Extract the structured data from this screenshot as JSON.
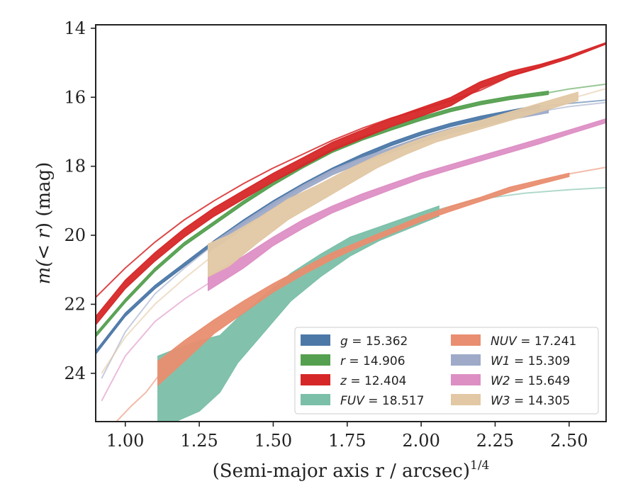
{
  "chart_data": {
    "type": "line",
    "xlabel": "(Semi-major axis r / arcsec)",
    "xlabel_exp": "1/4",
    "ylabel_pre": "m(",
    "ylabel_italic": "< r",
    "ylabel_post": ") (mag)",
    "xlim": [
      0.9,
      2.625
    ],
    "ylim": [
      25.4,
      13.9
    ],
    "y_inverted": true,
    "grid": false,
    "legend_position": "lower right",
    "xticks": [
      1.0,
      1.25,
      1.5,
      1.75,
      2.0,
      2.25,
      2.5
    ],
    "xtick_labels": [
      "1.00",
      "1.25",
      "1.50",
      "1.75",
      "2.00",
      "2.25",
      "2.50"
    ],
    "yticks": [
      14,
      16,
      18,
      20,
      22,
      24
    ],
    "ytick_labels": [
      "14",
      "16",
      "18",
      "20",
      "22",
      "24"
    ],
    "series": [
      {
        "band": "g",
        "value": "15.362",
        "color": "#4c78a8",
        "band_x": [
          0.9,
          1.0,
          1.1,
          1.2,
          1.3,
          1.4,
          1.5,
          1.6,
          1.7,
          1.8,
          1.9,
          2.0,
          2.1,
          2.2,
          2.3,
          2.4
        ],
        "band_lo": [
          23.35,
          22.25,
          21.45,
          20.8,
          20.15,
          19.55,
          19.0,
          18.5,
          18.05,
          17.65,
          17.3,
          17.0,
          16.75,
          16.55,
          16.38,
          16.22
        ],
        "band_hi": [
          23.45,
          22.35,
          21.55,
          20.9,
          20.25,
          19.65,
          19.1,
          18.6,
          18.15,
          17.75,
          17.4,
          17.1,
          16.85,
          16.65,
          16.48,
          16.32
        ],
        "ext_x": [
          2.4,
          2.5,
          2.625
        ],
        "ext_y": [
          16.27,
          16.18,
          16.08
        ]
      },
      {
        "band": "r",
        "value": "14.906",
        "color": "#55a050",
        "band_x": [
          0.9,
          1.0,
          1.1,
          1.2,
          1.3,
          1.4,
          1.5,
          1.6,
          1.7,
          1.8,
          1.9,
          2.0,
          2.1,
          2.2,
          2.3,
          2.43
        ],
        "band_lo": [
          22.85,
          21.85,
          20.95,
          20.2,
          19.6,
          19.0,
          18.45,
          17.95,
          17.5,
          17.15,
          16.85,
          16.57,
          16.32,
          16.12,
          15.97,
          15.82
        ],
        "band_hi": [
          22.95,
          21.95,
          21.05,
          20.3,
          19.7,
          19.1,
          18.55,
          18.05,
          17.6,
          17.25,
          16.95,
          16.67,
          16.42,
          16.22,
          16.07,
          15.92
        ],
        "ext_x": [
          2.43,
          2.5,
          2.625
        ],
        "ext_y": [
          15.87,
          15.76,
          15.62
        ]
      },
      {
        "band": "z",
        "value": "12.404",
        "color": "#d62728",
        "band_x": [
          0.9,
          1.0,
          1.1,
          1.2,
          1.3,
          1.4,
          1.5,
          1.6,
          1.7,
          1.8,
          1.9,
          2.0,
          2.1,
          2.2,
          2.3,
          2.4,
          2.5,
          2.625
        ],
        "band_lo": [
          22.35,
          21.3,
          20.5,
          19.8,
          19.2,
          18.7,
          18.2,
          17.75,
          17.3,
          16.95,
          16.6,
          16.3,
          16.0,
          15.55,
          15.25,
          15.05,
          14.8,
          14.42
        ],
        "band_hi": [
          22.6,
          21.55,
          20.75,
          20.05,
          19.45,
          18.95,
          18.45,
          18.0,
          17.55,
          17.2,
          16.85,
          16.55,
          16.25,
          15.75,
          15.4,
          15.15,
          14.88,
          14.46
        ],
        "ext_x": [
          0.9,
          1.0,
          1.1,
          1.2,
          1.3,
          1.4,
          1.5,
          1.6,
          1.7,
          1.8,
          1.9,
          2.0,
          2.1,
          2.2,
          2.3,
          2.4,
          2.5,
          2.625
        ],
        "ext_y": [
          21.8,
          20.95,
          20.2,
          19.55,
          19.0,
          18.5,
          18.05,
          17.65,
          17.25,
          16.9,
          16.6,
          16.35,
          16.1,
          15.8,
          15.4,
          15.1,
          14.8,
          14.42
        ]
      },
      {
        "band": "FUV",
        "value": "18.517",
        "color": "#7bbfa8",
        "band_x": [
          1.11,
          1.17,
          1.25,
          1.32,
          1.38,
          1.46,
          1.56,
          1.66,
          1.76,
          1.86,
          1.96,
          2.06
        ],
        "band_lo": [
          23.5,
          23.3,
          23.05,
          22.9,
          22.4,
          21.8,
          21.1,
          20.55,
          20.05,
          19.75,
          19.45,
          19.15
        ],
        "band_hi": [
          25.4,
          25.4,
          25.1,
          24.55,
          23.7,
          22.9,
          21.9,
          21.2,
          20.6,
          20.15,
          19.8,
          19.45
        ],
        "ext_x": [
          2.06,
          2.2,
          2.35,
          2.5,
          2.625
        ],
        "ext_y": [
          19.25,
          18.95,
          18.78,
          18.68,
          18.62
        ]
      },
      {
        "band": "NUV",
        "value": "17.241",
        "color": "#e98e70",
        "band_x": [
          1.11,
          1.2,
          1.3,
          1.4,
          1.5,
          1.6,
          1.7,
          1.8,
          1.9,
          2.0,
          2.1,
          2.2,
          2.3,
          2.4,
          2.5
        ],
        "band_lo": [
          23.65,
          23.05,
          22.45,
          21.9,
          21.4,
          20.95,
          20.5,
          20.15,
          19.8,
          19.45,
          19.15,
          18.9,
          18.6,
          18.4,
          18.2
        ],
        "band_hi": [
          24.35,
          23.65,
          22.85,
          22.25,
          21.65,
          21.15,
          20.7,
          20.3,
          19.95,
          19.6,
          19.3,
          19.02,
          18.75,
          18.52,
          18.3
        ],
        "ext_x": [
          0.97,
          1.02,
          1.07,
          1.11
        ],
        "ext_y": [
          25.4,
          24.95,
          24.55,
          24.1
        ],
        "ext2_x": [
          2.5,
          2.625
        ],
        "ext2_y": [
          18.22,
          18.03
        ]
      },
      {
        "band": "W1",
        "value": "15.309",
        "color": "#9eaac8",
        "band_x": [
          1.28,
          1.4,
          1.5,
          1.6,
          1.7,
          1.8,
          1.9,
          2.0,
          2.1,
          2.2,
          2.3,
          2.43
        ],
        "band_lo": [
          20.3,
          19.6,
          19.05,
          18.55,
          18.1,
          17.75,
          17.45,
          17.15,
          16.9,
          16.7,
          16.5,
          16.3
        ],
        "band_hi": [
          20.5,
          19.8,
          19.2,
          18.7,
          18.25,
          17.9,
          17.6,
          17.3,
          17.05,
          16.85,
          16.65,
          16.45
        ],
        "ext_x": [
          0.92,
          1.0,
          1.1,
          1.2,
          1.28
        ],
        "ext_y": [
          24.15,
          22.8,
          21.7,
          20.95,
          20.4
        ],
        "ext2_x": [
          2.43,
          2.5,
          2.625
        ],
        "ext2_y": [
          16.37,
          16.27,
          16.15
        ]
      },
      {
        "band": "W2",
        "value": "15.649",
        "color": "#dd8fc4",
        "band_x": [
          1.28,
          1.4,
          1.5,
          1.6,
          1.7,
          1.8,
          1.9,
          2.0,
          2.1,
          2.2,
          2.3,
          2.4,
          2.5,
          2.625
        ],
        "band_lo": [
          21.2,
          20.6,
          20.05,
          19.55,
          19.15,
          18.8,
          18.5,
          18.2,
          17.95,
          17.7,
          17.45,
          17.2,
          16.95,
          16.62
        ],
        "band_hi": [
          21.6,
          20.95,
          20.3,
          19.8,
          19.35,
          19.0,
          18.67,
          18.36,
          18.1,
          17.85,
          17.6,
          17.35,
          17.07,
          16.74
        ],
        "ext_x": [
          0.92,
          1.0,
          1.1,
          1.2,
          1.28
        ],
        "ext_y": [
          24.8,
          23.5,
          22.5,
          21.85,
          21.4
        ]
      },
      {
        "band": "W3",
        "value": "14.305",
        "color": "#e2c8a4",
        "band_x": [
          1.28,
          1.35,
          1.45,
          1.55,
          1.65,
          1.75,
          1.85,
          1.95,
          2.05,
          2.15,
          2.25,
          2.35,
          2.45,
          2.53
        ],
        "band_lo": [
          20.25,
          20.0,
          19.5,
          18.95,
          18.55,
          18.1,
          17.7,
          17.35,
          17.05,
          16.8,
          16.55,
          16.3,
          16.05,
          15.85
        ],
        "band_hi": [
          21.2,
          20.9,
          20.2,
          19.55,
          19.05,
          18.55,
          18.05,
          17.65,
          17.3,
          17.05,
          16.8,
          16.55,
          16.3,
          16.1
        ],
        "ext_x": [
          0.92,
          1.0,
          1.1,
          1.2,
          1.28
        ],
        "ext_y": [
          24.0,
          22.95,
          22.0,
          21.25,
          20.7
        ],
        "ext2_x": [
          2.53,
          2.625
        ],
        "ext2_y": [
          15.98,
          15.75
        ]
      }
    ],
    "legend": [
      {
        "band": "g",
        "value": "15.362",
        "color": "#4c78a8"
      },
      {
        "band": "r",
        "value": "14.906",
        "color": "#55a050"
      },
      {
        "band": "z",
        "value": "12.404",
        "color": "#d62728"
      },
      {
        "band": "FUV",
        "value": "18.517",
        "color": "#7bbfa8"
      },
      {
        "band": "NUV",
        "value": "17.241",
        "color": "#e98e70"
      },
      {
        "band": "W1",
        "value": "15.309",
        "color": "#9eaac8"
      },
      {
        "band": "W2",
        "value": "15.649",
        "color": "#dd8fc4"
      },
      {
        "band": "W3",
        "value": "14.305",
        "color": "#e2c8a4"
      }
    ]
  }
}
